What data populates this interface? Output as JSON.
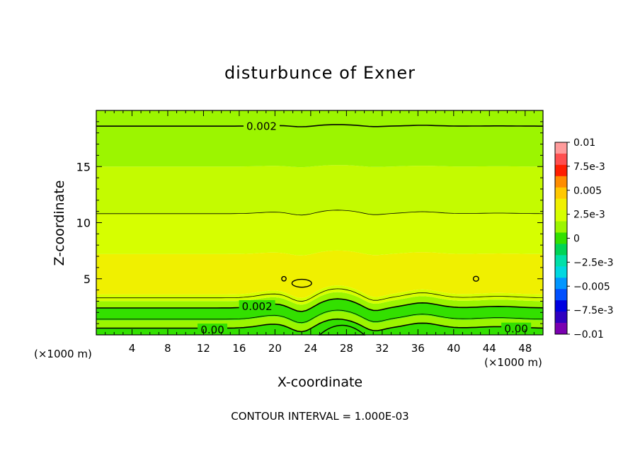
{
  "chart_data": {
    "type": "heatmap",
    "title": "disturbunce of Exner",
    "xlabel": "X-coordinate",
    "ylabel": "Z-coordinate",
    "x_unit_left": "(×1000 m)",
    "x_unit_right": "(×1000 m)",
    "xlim": [
      0,
      50
    ],
    "ylim": [
      0,
      20
    ],
    "x_ticks": [
      "4",
      "8",
      "12",
      "16",
      "20",
      "24",
      "28",
      "32",
      "36",
      "40",
      "44",
      "48"
    ],
    "y_ticks": [
      "5",
      "10",
      "15"
    ],
    "footer": "CONTOUR INTERVAL = 1.000E-03",
    "contour_labels": [
      {
        "text": "0.002",
        "x": 18.5,
        "z": 18.6
      },
      {
        "text": "0.002",
        "x": 18.0,
        "z": 2.4
      },
      {
        "text": "0.00",
        "x": 13.0,
        "z": 0.5
      },
      {
        "text": "0.00",
        "x": 47.0,
        "z": 0.5
      }
    ],
    "colorbar": {
      "labels": [
        "0.01",
        "7.5e-3",
        "0.005",
        "2.5e-3",
        "0",
        "−2.5e-3",
        "−0.005",
        "−7.5e-3",
        "−0.01"
      ],
      "colors": [
        "#ff9b9b",
        "#ff4f4f",
        "#ff1e00",
        "#ff8c00",
        "#ffc800",
        "#f0f000",
        "#d6ff00",
        "#9cf500",
        "#33e000",
        "#00d455",
        "#00e0a8",
        "#00d8e0",
        "#0096ff",
        "#0050ff",
        "#0000e0",
        "#3000c0",
        "#7a00b0"
      ]
    },
    "field_bands": [
      {
        "z_from": 0.0,
        "z_to": 0.6,
        "color": "#33e000"
      },
      {
        "z_from": 0.6,
        "z_to": 1.3,
        "color": "#9cf500"
      },
      {
        "z_from": 1.3,
        "z_to": 2.4,
        "color": "#33e000"
      },
      {
        "z_from": 2.4,
        "z_to": 3.0,
        "color": "#9cf500"
      },
      {
        "z_from": 3.0,
        "z_to": 3.6,
        "color": "#d6ff00"
      },
      {
        "z_from": 3.6,
        "z_to": 7.2,
        "color": "#f0f000"
      },
      {
        "z_from": 7.2,
        "z_to": 10.8,
        "color": "#d6ff00"
      },
      {
        "z_from": 10.8,
        "z_to": 15.0,
        "color": "#c4fb00"
      },
      {
        "z_from": 15.0,
        "z_to": 20.0,
        "color": "#9cf500"
      }
    ],
    "contour_lines": [
      {
        "level": "0.002",
        "z": 18.6,
        "thick": true
      },
      {
        "level": "",
        "z": 10.8,
        "thick": false
      },
      {
        "level": "",
        "z": 3.3,
        "thick": false
      },
      {
        "level": "0.002",
        "z": 2.4,
        "thick": true
      },
      {
        "level": "",
        "z": 1.4,
        "thick": false
      },
      {
        "level": "0.00",
        "z": 0.6,
        "thick": true
      }
    ]
  }
}
